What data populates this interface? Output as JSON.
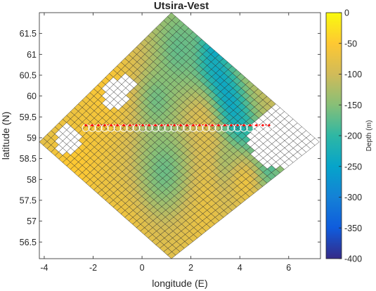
{
  "chart_data": {
    "type": "heatmap",
    "title": "Utsira-Vest",
    "xlabel": "longitude (E)",
    "ylabel": "latitude (N)",
    "xlim": [
      -4.2,
      7.3
    ],
    "ylim": [
      56.1,
      62.0
    ],
    "xticks": [
      -4,
      -2,
      0,
      2,
      4,
      6
    ],
    "yticks": [
      56.5,
      57,
      57.5,
      58,
      58.5,
      59,
      59.5,
      60,
      60.5,
      61,
      61.5
    ],
    "colorbar": {
      "label": "Depth (m)",
      "range": [
        -400,
        0
      ],
      "ticks": [
        0,
        -50,
        -100,
        -150,
        -200,
        -250,
        -300,
        -350,
        -400
      ],
      "colormap": "parula",
      "colors": [
        "#352a87",
        "#0f5cdd",
        "#1481d6",
        "#06a4ca",
        "#2eb7a4",
        "#87bf77",
        "#d1bb59",
        "#fec832",
        "#f9fb0e"
      ]
    },
    "grid_domain": {
      "corners_lonlat": [
        [
          1.2,
          62.0
        ],
        [
          7.25,
          58.9
        ],
        [
          1.2,
          56.1
        ],
        [
          -4.2,
          58.9
        ]
      ],
      "cells_per_side": 34,
      "depth_model": {
        "base": -105,
        "features": [
          {
            "kind": "trench",
            "depth": -280,
            "points": [
              [
                3.2,
                61.9
              ],
              [
                2.7,
                60.8
              ],
              [
                3.5,
                59.8
              ],
              [
                4.1,
                58.9
              ],
              [
                4.8,
                58.3
              ],
              [
                3.5,
                58.2
              ]
            ],
            "width": 0.55
          },
          {
            "kind": "basin",
            "depth": -55,
            "center": [
              -1.4,
              60.2
            ],
            "radius": 1.1
          },
          {
            "kind": "basin",
            "depth": -50,
            "center": [
              -2.8,
              58.3
            ],
            "radius": 1.1
          },
          {
            "kind": "basin",
            "depth": -55,
            "center": [
              2.0,
              57.7
            ],
            "radius": 1.3
          },
          {
            "kind": "basin",
            "depth": -55,
            "center": [
              -0.4,
              57.0
            ],
            "radius": 1.1
          },
          {
            "kind": "basin",
            "depth": -60,
            "center": [
              0.8,
              60.6
            ],
            "radius": 0.7
          },
          {
            "kind": "basin",
            "depth": -65,
            "center": [
              2.1,
              59.4
            ],
            "radius": 0.6
          },
          {
            "kind": "basin",
            "depth": -70,
            "center": [
              4.2,
              57.9
            ],
            "radius": 0.7
          },
          {
            "kind": "dip",
            "depth": -165,
            "center": [
              0.9,
              58.2
            ],
            "radius": 0.9
          },
          {
            "kind": "dip",
            "depth": -160,
            "center": [
              0.6,
              59.9
            ],
            "radius": 0.55
          },
          {
            "kind": "dip",
            "depth": -170,
            "center": [
              1.5,
              61.1
            ],
            "radius": 0.9
          }
        ]
      },
      "blank_regions": [
        {
          "center": [
            -3.0,
            58.95
          ],
          "radius": 0.55
        },
        {
          "center": [
            -1.1,
            60.05
          ],
          "radius": 0.55
        },
        {
          "center": [
            -0.6,
            60.3
          ],
          "radius": 0.35
        },
        {
          "center": [
            5.6,
            59.0
          ],
          "radius": 1.2
        },
        {
          "center": [
            6.3,
            58.95
          ],
          "radius": 0.8
        },
        {
          "center": [
            4.9,
            61.2
          ],
          "radius": 0.25
        },
        {
          "center": [
            2.0,
            61.95
          ],
          "radius": 0.2
        }
      ]
    },
    "transect": {
      "lat": 59.3,
      "lon_range": [
        -2.3,
        5.2
      ],
      "markers": 30,
      "color": "#ff0000",
      "circle_color": "#ffffff"
    }
  }
}
